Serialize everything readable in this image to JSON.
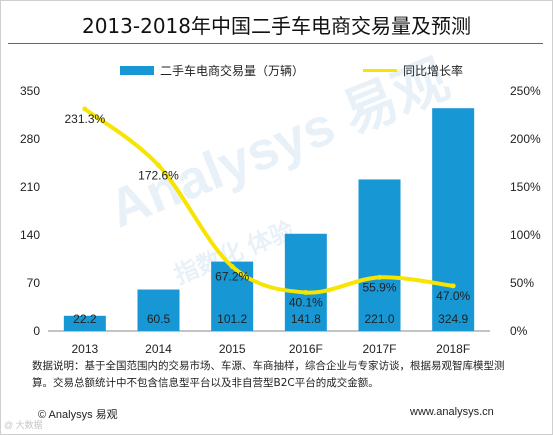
{
  "title": "2013-2018年中国二手车电商交易量及预测",
  "legend": {
    "bar_label": "二手车电商交易量（万辆）",
    "line_label": "同比增长率"
  },
  "chart_data": {
    "type": "bar",
    "categories": [
      "2013",
      "2014",
      "2015",
      "2016F",
      "2017F",
      "2018F"
    ],
    "series": [
      {
        "name": "二手车电商交易量（万辆）",
        "type": "bar",
        "axis": "left",
        "values": [
          22.2,
          60.5,
          101.2,
          141.8,
          221.0,
          324.9
        ],
        "labels": [
          "22.2",
          "60.5",
          "101.2",
          "141.8",
          "221.0",
          "324.9"
        ]
      },
      {
        "name": "同比增长率",
        "type": "line",
        "axis": "right",
        "values": [
          231.3,
          172.6,
          67.2,
          40.1,
          55.9,
          47.0
        ],
        "labels": [
          "231.3%",
          "172.6%",
          "67.2%",
          "40.1%",
          "55.9%",
          "47.0%"
        ]
      }
    ],
    "y_left": {
      "ylim": [
        0,
        350
      ],
      "ticks": [
        "0",
        "70",
        "140",
        "210",
        "280",
        "350"
      ]
    },
    "y_right": {
      "ylim": [
        0,
        250
      ],
      "ticks": [
        "0%",
        "50%",
        "100%",
        "150%",
        "200%",
        "250%"
      ]
    },
    "colors": {
      "bar": "#1797d4",
      "line": "#f7e400"
    },
    "legend_position": "top",
    "grid": false
  },
  "note": "数据说明：基于全国范围内的交易市场、车源、车商抽样，综合企业与专家访谈，根据易观智库模型测算。交易总额统计中不包含信息型平台以及非自营型B2C平台的成交金额。",
  "footer": {
    "copyright": "© Analysys 易观",
    "website": "www.analysys.cn"
  },
  "watermark": {
    "brand": "Analysys 易观",
    "slogan": "指数化 体验",
    "weibo": "@ 大数据"
  }
}
